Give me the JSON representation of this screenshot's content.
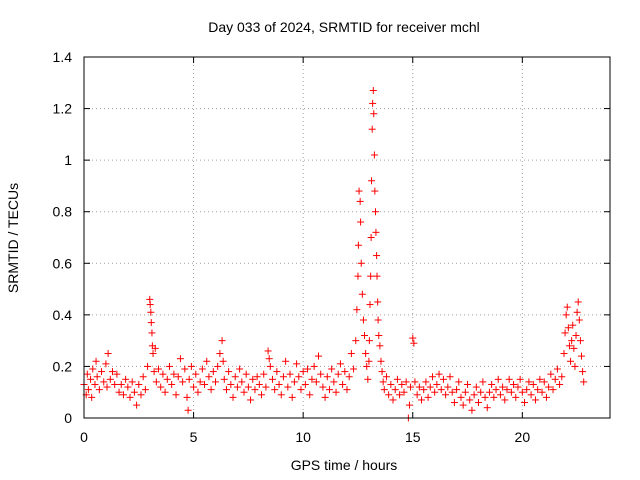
{
  "chart_data": {
    "type": "scatter",
    "title": "Day 033 of 2024, SRMTID for receiver mchl",
    "xlabel": "GPS time / hours",
    "ylabel": "SRMTID / TECUs",
    "xlim": [
      0,
      24
    ],
    "ylim": [
      0,
      1.4
    ],
    "xticks": [
      0,
      5,
      10,
      15,
      20
    ],
    "xtick_labels": [
      "0",
      "5",
      "10",
      "15",
      "20"
    ],
    "yticks": [
      0,
      0.2,
      0.4,
      0.6,
      0.8,
      1.0,
      1.2,
      1.4
    ],
    "ytick_labels": [
      "0",
      "0.2",
      "0.4",
      "0.6",
      "0.8",
      "1",
      "1.2",
      "1.4"
    ],
    "grid": true,
    "marker": "plus",
    "color": "#ff0000",
    "series": [
      {
        "name": "SRMTID",
        "points": [
          [
            0.0,
            0.13
          ],
          [
            0.1,
            0.09
          ],
          [
            0.15,
            0.17
          ],
          [
            0.2,
            0.11
          ],
          [
            0.3,
            0.15
          ],
          [
            0.35,
            0.08
          ],
          [
            0.4,
            0.19
          ],
          [
            0.5,
            0.13
          ],
          [
            0.55,
            0.22
          ],
          [
            0.6,
            0.16
          ],
          [
            0.7,
            0.11
          ],
          [
            0.8,
            0.18
          ],
          [
            0.9,
            0.14
          ],
          [
            1.0,
            0.21
          ],
          [
            1.05,
            0.12
          ],
          [
            1.1,
            0.25
          ],
          [
            1.2,
            0.15
          ],
          [
            1.3,
            0.18
          ],
          [
            1.4,
            0.13
          ],
          [
            1.5,
            0.17
          ],
          [
            1.6,
            0.1
          ],
          [
            1.7,
            0.13
          ],
          [
            1.8,
            0.09
          ],
          [
            1.9,
            0.15
          ],
          [
            2.0,
            0.12
          ],
          [
            2.1,
            0.08
          ],
          [
            2.2,
            0.14
          ],
          [
            2.3,
            0.1
          ],
          [
            2.4,
            0.05
          ],
          [
            2.5,
            0.13
          ],
          [
            2.6,
            0.09
          ],
          [
            2.7,
            0.16
          ],
          [
            2.8,
            0.11
          ],
          [
            2.9,
            0.2
          ],
          [
            3.0,
            0.46
          ],
          [
            3.02,
            0.44
          ],
          [
            3.05,
            0.41
          ],
          [
            3.07,
            0.37
          ],
          [
            3.1,
            0.33
          ],
          [
            3.12,
            0.28
          ],
          [
            3.15,
            0.25
          ],
          [
            3.2,
            0.18
          ],
          [
            3.25,
            0.27
          ],
          [
            3.3,
            0.14
          ],
          [
            3.4,
            0.19
          ],
          [
            3.5,
            0.12
          ],
          [
            3.6,
            0.17
          ],
          [
            3.7,
            0.1
          ],
          [
            3.8,
            0.15
          ],
          [
            3.9,
            0.2
          ],
          [
            4.0,
            0.13
          ],
          [
            4.1,
            0.17
          ],
          [
            4.2,
            0.09
          ],
          [
            4.3,
            0.16
          ],
          [
            4.4,
            0.23
          ],
          [
            4.5,
            0.14
          ],
          [
            4.6,
            0.19
          ],
          [
            4.7,
            0.08
          ],
          [
            4.75,
            0.03
          ],
          [
            4.8,
            0.15
          ],
          [
            4.9,
            0.2
          ],
          [
            5.0,
            0.12
          ],
          [
            5.1,
            0.17
          ],
          [
            5.2,
            0.1
          ],
          [
            5.3,
            0.14
          ],
          [
            5.4,
            0.19
          ],
          [
            5.5,
            0.13
          ],
          [
            5.6,
            0.22
          ],
          [
            5.7,
            0.16
          ],
          [
            5.8,
            0.11
          ],
          [
            5.9,
            0.18
          ],
          [
            6.0,
            0.14
          ],
          [
            6.1,
            0.2
          ],
          [
            6.2,
            0.25
          ],
          [
            6.3,
            0.3
          ],
          [
            6.35,
            0.22
          ],
          [
            6.4,
            0.15
          ],
          [
            6.5,
            0.11
          ],
          [
            6.6,
            0.18
          ],
          [
            6.7,
            0.13
          ],
          [
            6.8,
            0.08
          ],
          [
            6.9,
            0.16
          ],
          [
            7.0,
            0.12
          ],
          [
            7.1,
            0.19
          ],
          [
            7.2,
            0.14
          ],
          [
            7.3,
            0.1
          ],
          [
            7.4,
            0.17
          ],
          [
            7.5,
            0.12
          ],
          [
            7.6,
            0.07
          ],
          [
            7.7,
            0.15
          ],
          [
            7.8,
            0.11
          ],
          [
            7.9,
            0.16
          ],
          [
            8.0,
            0.13
          ],
          [
            8.1,
            0.09
          ],
          [
            8.2,
            0.17
          ],
          [
            8.3,
            0.12
          ],
          [
            8.4,
            0.26
          ],
          [
            8.45,
            0.23
          ],
          [
            8.5,
            0.2
          ],
          [
            8.6,
            0.15
          ],
          [
            8.7,
            0.11
          ],
          [
            8.8,
            0.18
          ],
          [
            8.9,
            0.13
          ],
          [
            9.0,
            0.09
          ],
          [
            9.1,
            0.16
          ],
          [
            9.2,
            0.22
          ],
          [
            9.3,
            0.12
          ],
          [
            9.4,
            0.17
          ],
          [
            9.5,
            0.08
          ],
          [
            9.6,
            0.14
          ],
          [
            9.7,
            0.21
          ],
          [
            9.8,
            0.16
          ],
          [
            9.9,
            0.11
          ],
          [
            10.0,
            0.18
          ],
          [
            10.1,
            0.13
          ],
          [
            10.2,
            0.19
          ],
          [
            10.3,
            0.09
          ],
          [
            10.4,
            0.15
          ],
          [
            10.5,
            0.2
          ],
          [
            10.6,
            0.14
          ],
          [
            10.7,
            0.24
          ],
          [
            10.8,
            0.17
          ],
          [
            10.9,
            0.12
          ],
          [
            11.0,
            0.08
          ],
          [
            11.1,
            0.16
          ],
          [
            11.2,
            0.11
          ],
          [
            11.3,
            0.19
          ],
          [
            11.4,
            0.14
          ],
          [
            11.5,
            0.1
          ],
          [
            11.6,
            0.17
          ],
          [
            11.7,
            0.21
          ],
          [
            11.8,
            0.13
          ],
          [
            11.9,
            0.18
          ],
          [
            12.0,
            0.11
          ],
          [
            12.1,
            0.16
          ],
          [
            12.2,
            0.25
          ],
          [
            12.3,
            0.19
          ],
          [
            12.4,
            0.3
          ],
          [
            12.45,
            0.42
          ],
          [
            12.5,
            0.55
          ],
          [
            12.52,
            0.67
          ],
          [
            12.55,
            0.88
          ],
          [
            12.6,
            0.84
          ],
          [
            12.62,
            0.76
          ],
          [
            12.65,
            0.6
          ],
          [
            12.7,
            0.48
          ],
          [
            12.75,
            0.38
          ],
          [
            12.8,
            0.32
          ],
          [
            12.85,
            0.25
          ],
          [
            12.9,
            0.2
          ],
          [
            12.95,
            0.15
          ],
          [
            13.0,
            0.22
          ],
          [
            13.02,
            0.3
          ],
          [
            13.05,
            0.44
          ],
          [
            13.08,
            0.55
          ],
          [
            13.1,
            0.7
          ],
          [
            13.12,
            0.92
          ],
          [
            13.15,
            1.12
          ],
          [
            13.17,
            1.22
          ],
          [
            13.2,
            1.27
          ],
          [
            13.22,
            1.18
          ],
          [
            13.25,
            1.02
          ],
          [
            13.27,
            0.88
          ],
          [
            13.3,
            0.8
          ],
          [
            13.32,
            0.72
          ],
          [
            13.35,
            0.63
          ],
          [
            13.37,
            0.55
          ],
          [
            13.4,
            0.45
          ],
          [
            13.42,
            0.38
          ],
          [
            13.45,
            0.32
          ],
          [
            13.5,
            0.28
          ],
          [
            13.55,
            0.22
          ],
          [
            13.6,
            0.18
          ],
          [
            13.65,
            0.14
          ],
          [
            13.7,
            0.11
          ],
          [
            13.8,
            0.16
          ],
          [
            13.9,
            0.09
          ],
          [
            14.0,
            0.13
          ],
          [
            14.1,
            0.07
          ],
          [
            14.2,
            0.11
          ],
          [
            14.3,
            0.15
          ],
          [
            14.4,
            0.09
          ],
          [
            14.5,
            0.13
          ],
          [
            14.6,
            0.1
          ],
          [
            14.7,
            0.14
          ],
          [
            14.8,
            0.0
          ],
          [
            14.85,
            0.05
          ],
          [
            14.9,
            0.12
          ],
          [
            15.0,
            0.31
          ],
          [
            15.05,
            0.29
          ],
          [
            15.1,
            0.14
          ],
          [
            15.2,
            0.09
          ],
          [
            15.3,
            0.12
          ],
          [
            15.4,
            0.07
          ],
          [
            15.5,
            0.11
          ],
          [
            15.6,
            0.14
          ],
          [
            15.7,
            0.08
          ],
          [
            15.8,
            0.12
          ],
          [
            15.9,
            0.16
          ],
          [
            16.0,
            0.1
          ],
          [
            16.1,
            0.13
          ],
          [
            16.2,
            0.17
          ],
          [
            16.3,
            0.11
          ],
          [
            16.4,
            0.15
          ],
          [
            16.5,
            0.09
          ],
          [
            16.6,
            0.12
          ],
          [
            16.7,
            0.16
          ],
          [
            16.8,
            0.1
          ],
          [
            16.9,
            0.06
          ],
          [
            17.0,
            0.11
          ],
          [
            17.1,
            0.14
          ],
          [
            17.2,
            0.08
          ],
          [
            17.3,
            0.05
          ],
          [
            17.4,
            0.1
          ],
          [
            17.5,
            0.13
          ],
          [
            17.6,
            0.07
          ],
          [
            17.7,
            0.03
          ],
          [
            17.8,
            0.09
          ],
          [
            17.9,
            0.12
          ],
          [
            18.0,
            0.06
          ],
          [
            18.1,
            0.1
          ],
          [
            18.2,
            0.14
          ],
          [
            18.3,
            0.08
          ],
          [
            18.4,
            0.04
          ],
          [
            18.5,
            0.1
          ],
          [
            18.6,
            0.13
          ],
          [
            18.7,
            0.08
          ],
          [
            18.8,
            0.11
          ],
          [
            18.9,
            0.15
          ],
          [
            19.0,
            0.09
          ],
          [
            19.1,
            0.12
          ],
          [
            19.2,
            0.07
          ],
          [
            19.3,
            0.11
          ],
          [
            19.4,
            0.15
          ],
          [
            19.5,
            0.1
          ],
          [
            19.6,
            0.13
          ],
          [
            19.7,
            0.08
          ],
          [
            19.8,
            0.12
          ],
          [
            19.9,
            0.15
          ],
          [
            20.0,
            0.1
          ],
          [
            20.1,
            0.06
          ],
          [
            20.2,
            0.11
          ],
          [
            20.3,
            0.14
          ],
          [
            20.4,
            0.09
          ],
          [
            20.5,
            0.13
          ],
          [
            20.6,
            0.07
          ],
          [
            20.7,
            0.11
          ],
          [
            20.8,
            0.15
          ],
          [
            20.9,
            0.1
          ],
          [
            21.0,
            0.14
          ],
          [
            21.1,
            0.08
          ],
          [
            21.2,
            0.12
          ],
          [
            21.3,
            0.17
          ],
          [
            21.4,
            0.11
          ],
          [
            21.5,
            0.15
          ],
          [
            21.6,
            0.19
          ],
          [
            21.7,
            0.13
          ],
          [
            21.8,
            0.16
          ],
          [
            21.9,
            0.25
          ],
          [
            21.95,
            0.33
          ],
          [
            22.0,
            0.4
          ],
          [
            22.05,
            0.43
          ],
          [
            22.1,
            0.35
          ],
          [
            22.15,
            0.28
          ],
          [
            22.2,
            0.22
          ],
          [
            22.25,
            0.3
          ],
          [
            22.3,
            0.36
          ],
          [
            22.35,
            0.27
          ],
          [
            22.4,
            0.2
          ],
          [
            22.45,
            0.32
          ],
          [
            22.5,
            0.41
          ],
          [
            22.55,
            0.45
          ],
          [
            22.6,
            0.38
          ],
          [
            22.65,
            0.3
          ],
          [
            22.7,
            0.24
          ],
          [
            22.75,
            0.18
          ],
          [
            22.8,
            0.14
          ]
        ]
      }
    ]
  }
}
